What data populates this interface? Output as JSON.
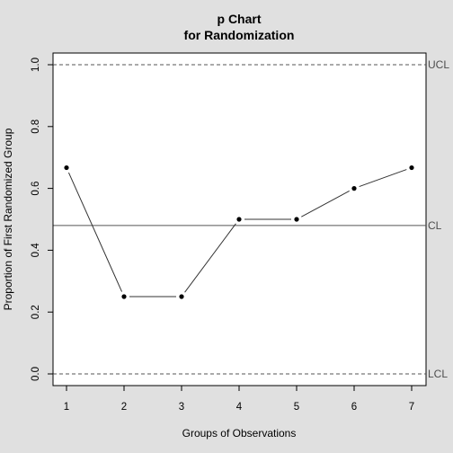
{
  "chart_data": {
    "type": "line",
    "title": "p Chart",
    "subtitle": "for Randomization",
    "xlabel": "Groups of Observations",
    "ylabel": "Proportion of First Randomized Group",
    "x": [
      1,
      2,
      3,
      4,
      5,
      6,
      7
    ],
    "values": [
      0.667,
      0.25,
      0.25,
      0.5,
      0.5,
      0.6,
      0.667
    ],
    "xlim": [
      1,
      7
    ],
    "ylim": [
      0,
      1
    ],
    "x_ticks": [
      "1",
      "2",
      "3",
      "4",
      "5",
      "6",
      "7"
    ],
    "y_ticks": [
      "0.0",
      "0.2",
      "0.4",
      "0.6",
      "0.8",
      "1.0"
    ],
    "reference_lines": [
      {
        "label": "UCL",
        "value": 1.0,
        "style": "dashed"
      },
      {
        "label": "CL",
        "value": 0.48,
        "style": "solid"
      },
      {
        "label": "LCL",
        "value": 0.0,
        "style": "dashed"
      }
    ],
    "grid": false,
    "colors": {
      "background": "#e0e0e0",
      "plot_background": "#ffffff",
      "line": "#333333",
      "points": "#000000",
      "reference": "#555555"
    }
  }
}
